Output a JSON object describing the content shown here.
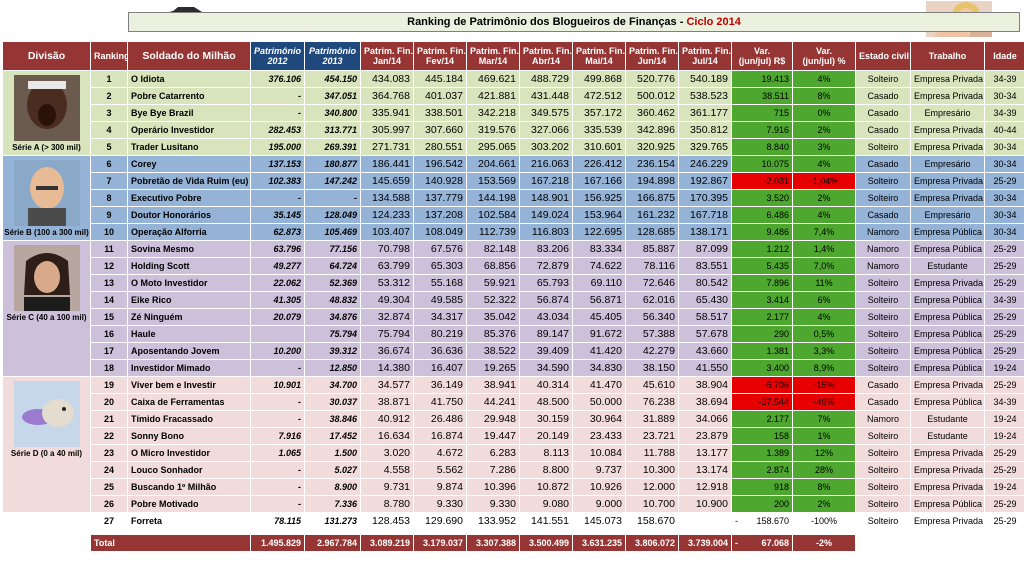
{
  "header": {
    "title": "Ranking de Patrimônio dos Blogueiros de Finanças - ",
    "cycle": "Ciclo 2014"
  },
  "columns": {
    "divisao": "Divisão",
    "ranking": "Ranking",
    "soldado": "Soldado do Milhão",
    "pat2012_a": "Patrimônio",
    "pat2012_b": "2012",
    "pat2013_a": "Patrimônio",
    "pat2013_b": "2013",
    "m1_a": "Patrim. Fin.",
    "m1_b": "Jan/14",
    "m2_a": "Patrim. Fin.",
    "m2_b": "Fev/14",
    "m3_a": "Patrim. Fin.",
    "m3_b": "Mar/14",
    "m4_a": "Patrim. Fin.",
    "m4_b": "Abr/14",
    "m5_a": "Patrim. Fin.",
    "m5_b": "Mai/14",
    "m6_a": "Patrim. Fin.",
    "m6_b": "Jun/14",
    "m7_a": "Patrim. Fin.",
    "m7_b": "Jul/14",
    "varrs_a": "Var.",
    "varrs_b": "(jun/jul) R$",
    "varpct_a": "Var.",
    "varpct_b": "(jun/jul) %",
    "civil": "Estado civil",
    "trabalho": "Trabalho",
    "idade": "Idade"
  },
  "divisions": [
    {
      "label": "Série A (> 300 mil)",
      "icon": "shouting-man-photo"
    },
    {
      "label": "Série B (100 a 300 mil)",
      "icon": "bald-man-photo"
    },
    {
      "label": "Série C (40 a 100 mil)",
      "icon": "long-hair-man-photo"
    },
    {
      "label": "Série D (0 a 40 mil)",
      "icon": "dog-frisbee-photo"
    }
  ],
  "rows": [
    {
      "rank": "1",
      "name": "O Idiota",
      "p12": "376.106",
      "p13": "454.150",
      "m": [
        "434.083",
        "445.184",
        "469.621",
        "488.729",
        "499.868",
        "520.776",
        "540.189"
      ],
      "vr": "19.413",
      "vp": "4%",
      "vc": "green",
      "civil": "Solteiro",
      "work": "Empresa Privada",
      "age": "34-39"
    },
    {
      "rank": "2",
      "name": "Pobre Catarrento",
      "p12": "-",
      "p13": "347.051",
      "m": [
        "364.768",
        "401.037",
        "421.881",
        "431.448",
        "472.512",
        "500.012",
        "538.523"
      ],
      "vr": "38.511",
      "vp": "8%",
      "vc": "green",
      "civil": "Casado",
      "work": "Empresa Privada",
      "age": "30-34"
    },
    {
      "rank": "3",
      "name": "Bye Bye Brazil",
      "p12": "-",
      "p13": "340.800",
      "m": [
        "335.941",
        "338.501",
        "342.218",
        "349.575",
        "357.172",
        "360.462",
        "361.177"
      ],
      "vr": "715",
      "vp": "0%",
      "vc": "green",
      "civil": "Casado",
      "work": "Empresário",
      "age": "34-39"
    },
    {
      "rank": "4",
      "name": "Operário Investidor",
      "p12": "282.453",
      "p13": "313.771",
      "m": [
        "305.997",
        "307.660",
        "319.576",
        "327.066",
        "335.539",
        "342.896",
        "350.812"
      ],
      "vr": "7.916",
      "vp": "2%",
      "vc": "green",
      "civil": "Casado",
      "work": "Empresa Privada",
      "age": "40-44"
    },
    {
      "rank": "5",
      "name": "Trader Lusitano",
      "p12": "195.000",
      "p13": "269.391",
      "m": [
        "271.731",
        "280.551",
        "295.065",
        "303.202",
        "310.601",
        "320.925",
        "329.765"
      ],
      "vr": "8.840",
      "vp": "3%",
      "vc": "green",
      "civil": "Solteiro",
      "work": "Empresa Privada",
      "age": "30-34"
    },
    {
      "rank": "6",
      "name": "Corey",
      "p12": "137.153",
      "p13": "180.877",
      "m": [
        "186.441",
        "196.542",
        "204.661",
        "216.063",
        "226.412",
        "236.154",
        "246.229"
      ],
      "vr": "10.075",
      "vp": "4%",
      "vc": "green",
      "civil": "Casado",
      "work": "Empresário",
      "age": "30-34"
    },
    {
      "rank": "7",
      "name": "Pobretão de Vida Ruim (eu)",
      "p12": "102.383",
      "p13": "147.242",
      "m": [
        "145.659",
        "140.928",
        "153.569",
        "167.218",
        "167.166",
        "194.898",
        "192.867"
      ],
      "vr": "-2.031",
      "vp": "-1,04%",
      "vc": "red",
      "civil": "Solteiro",
      "work": "Empresa Privada",
      "age": "25-29"
    },
    {
      "rank": "8",
      "name": "Executivo Pobre",
      "p12": "-",
      "p13": "-",
      "m": [
        "134.588",
        "137.779",
        "144.198",
        "148.901",
        "156.925",
        "166.875",
        "170.395"
      ],
      "vr": "3.520",
      "vp": "2%",
      "vc": "green",
      "civil": "Solteiro",
      "work": "Empresa Privada",
      "age": "30-34"
    },
    {
      "rank": "9",
      "name": "Doutor Honorários",
      "p12": "35.145",
      "p13": "128.049",
      "m": [
        "124.233",
        "137.208",
        "102.584",
        "149.024",
        "153.964",
        "161.232",
        "167.718"
      ],
      "vr": "6.486",
      "vp": "4%",
      "vc": "green",
      "civil": "Casado",
      "work": "Empresário",
      "age": "30-34"
    },
    {
      "rank": "10",
      "name": "Operação Alforria",
      "p12": "62.873",
      "p13": "105.469",
      "m": [
        "103.407",
        "108.049",
        "112.739",
        "116.803",
        "122.695",
        "128.685",
        "138.171"
      ],
      "vr": "9.486",
      "vp": "7,4%",
      "vc": "green",
      "civil": "Namoro",
      "work": "Empresa Pública",
      "age": "30-34"
    },
    {
      "rank": "11",
      "name": "Sovina Mesmo",
      "p12": "63.796",
      "p13": "77.156",
      "m": [
        "70.798",
        "67.576",
        "82.148",
        "83.206",
        "83.334",
        "85.887",
        "87.099"
      ],
      "vr": "1.212",
      "vp": "1,4%",
      "vc": "green",
      "civil": "Namoro",
      "work": "Empresa Pública",
      "age": "25-29"
    },
    {
      "rank": "12",
      "name": "Holding Scott",
      "p12": "49.277",
      "p13": "64.724",
      "m": [
        "63.799",
        "65.303",
        "68.856",
        "72.879",
        "74.622",
        "78.116",
        "83.551"
      ],
      "vr": "5.435",
      "vp": "7,0%",
      "vc": "green",
      "civil": "Namoro",
      "work": "Estudante",
      "age": "25-29"
    },
    {
      "rank": "13",
      "name": "O Moto Investidor",
      "p12": "22.062",
      "p13": "52.369",
      "m": [
        "53.312",
        "55.168",
        "59.921",
        "65.793",
        "69.110",
        "72.646",
        "80.542"
      ],
      "vr": "7.896",
      "vp": "11%",
      "vc": "green",
      "civil": "Solteiro",
      "work": "Empresa Privada",
      "age": "25-29"
    },
    {
      "rank": "14",
      "name": "Eike Rico",
      "p12": "41.305",
      "p13": "48.832",
      "m": [
        "49.304",
        "49.585",
        "52.322",
        "56.874",
        "56.871",
        "62.016",
        "65.430"
      ],
      "vr": "3.414",
      "vp": "6%",
      "vc": "green",
      "civil": "Solteiro",
      "work": "Empresa Pública",
      "age": "34-39"
    },
    {
      "rank": "15",
      "name": "Zé Ninguém",
      "p12": "20.079",
      "p13": "34.876",
      "m": [
        "32.874",
        "34.317",
        "35.042",
        "43.034",
        "45.405",
        "56.340",
        "58.517"
      ],
      "vr": "2.177",
      "vp": "4%",
      "vc": "green",
      "civil": "Solteiro",
      "work": "Empresa Pública",
      "age": "25-29"
    },
    {
      "rank": "16",
      "name": "Haule",
      "p12": "",
      "p13": "75.794",
      "m": [
        "75.794",
        "80.219",
        "85.376",
        "89.147",
        "91.672",
        "57.388",
        "57.678"
      ],
      "vr": "290",
      "vp": "0,5%",
      "vc": "green",
      "civil": "Solteiro",
      "work": "Empresa Pública",
      "age": "25-29"
    },
    {
      "rank": "17",
      "name": "Aposentando Jovem",
      "p12": "10.200",
      "p13": "39.312",
      "m": [
        "36.674",
        "36.636",
        "38.522",
        "39.409",
        "41.420",
        "42.279",
        "43.660"
      ],
      "vr": "1.381",
      "vp": "3,3%",
      "vc": "green",
      "civil": "Solteiro",
      "work": "Empresa Pública",
      "age": "25-29"
    },
    {
      "rank": "18",
      "name": "Investidor Mimado",
      "p12": "-",
      "p13": "12.850",
      "m": [
        "14.380",
        "16.407",
        "19.265",
        "34.590",
        "34.830",
        "38.150",
        "41.550"
      ],
      "vr": "3.400",
      "vp": "8,9%",
      "vc": "green",
      "civil": "Solteiro",
      "work": "Empresa Pública",
      "age": "19-24"
    },
    {
      "rank": "19",
      "name": "Viver bem e Investir",
      "p12": "10.901",
      "p13": "34.700",
      "m": [
        "34.577",
        "36.149",
        "38.941",
        "40.314",
        "41.470",
        "45.610",
        "38.904"
      ],
      "vr": "-6.706",
      "vp": "-15%",
      "vc": "red",
      "civil": "Casado",
      "work": "Empresa Privada",
      "age": "25-29"
    },
    {
      "rank": "20",
      "name": "Caixa de Ferramentas",
      "p12": "-",
      "p13": "30.037",
      "m": [
        "38.871",
        "41.750",
        "44.241",
        "48.500",
        "50.000",
        "76.238",
        "38.694"
      ],
      "vr": "-37.544",
      "vp": "-49%",
      "vc": "red",
      "civil": "Casado",
      "work": "Empresa Pública",
      "age": "34-39"
    },
    {
      "rank": "21",
      "name": "Tímido Fracassado",
      "p12": "-",
      "p13": "38.846",
      "m": [
        "40.912",
        "26.486",
        "29.948",
        "30.159",
        "30.964",
        "31.889",
        "34.066"
      ],
      "vr": "2.177",
      "vp": "7%",
      "vc": "green",
      "civil": "Namoro",
      "work": "Estudante",
      "age": "19-24"
    },
    {
      "rank": "22",
      "name": "Sonny Bono",
      "p12": "7.916",
      "p13": "17.452",
      "m": [
        "16.634",
        "16.874",
        "19.447",
        "20.149",
        "23.433",
        "23.721",
        "23.879"
      ],
      "vr": "158",
      "vp": "1%",
      "vc": "green",
      "civil": "Solteiro",
      "work": "Estudante",
      "age": "19-24"
    },
    {
      "rank": "23",
      "name": "O Micro Investidor",
      "p12": "1.065",
      "p13": "1.500",
      "m": [
        "3.020",
        "4.672",
        "6.283",
        "8.113",
        "10.084",
        "11.788",
        "13.177"
      ],
      "vr": "1.389",
      "vp": "12%",
      "vc": "green",
      "civil": "Solteiro",
      "work": "Empresa Privada",
      "age": "25-29"
    },
    {
      "rank": "24",
      "name": "Louco Sonhador",
      "p12": "-",
      "p13": "5.027",
      "m": [
        "4.558",
        "5.562",
        "7.286",
        "8.800",
        "9.737",
        "10.300",
        "13.174"
      ],
      "vr": "2.874",
      "vp": "28%",
      "vc": "green",
      "civil": "Solteiro",
      "work": "Empresa Privada",
      "age": "25-29"
    },
    {
      "rank": "25",
      "name": "Buscando 1º Milhão",
      "p12": "-",
      "p13": "8.900",
      "m": [
        "9.731",
        "9.874",
        "10.396",
        "10.872",
        "10.926",
        "12.000",
        "12.918"
      ],
      "vr": "918",
      "vp": "8%",
      "vc": "green",
      "civil": "Solteiro",
      "work": "Empresa Privada",
      "age": "19-24"
    },
    {
      "rank": "26",
      "name": "Pobre Motivado",
      "p12": "-",
      "p13": "7.336",
      "m": [
        "8.780",
        "9.330",
        "9.330",
        "9.080",
        "9.000",
        "10.700",
        "10.900"
      ],
      "vr": "200",
      "vp": "2%",
      "vc": "green",
      "civil": "Solteiro",
      "work": "Empresa Pública",
      "age": "25-29"
    },
    {
      "rank": "27",
      "name": "Forreta",
      "p12": "78.115",
      "p13": "131.273",
      "m": [
        "128.453",
        "129.690",
        "133.952",
        "141.551",
        "145.073",
        "158.670",
        ""
      ],
      "vr": "158.670",
      "vp": "-100%",
      "vc": "none",
      "vrprefix": "-",
      "civil": "Solteiro",
      "work": "Empresa Privada",
      "age": "25-29"
    }
  ],
  "total": {
    "label": "Total",
    "p12": "1.495.829",
    "p13": "2.967.784",
    "m": [
      "3.089.219",
      "3.179.037",
      "3.307.388",
      "3.500.499",
      "3.631.235",
      "3.806.072",
      "3.739.004"
    ],
    "vr": "67.068",
    "vrprefix": "-",
    "vp": "-2%"
  },
  "colors": {
    "header": "#963634",
    "patrimonio_header": "#1f497d",
    "serie_a": "#d8e4bc",
    "serie_b": "#95b3d7",
    "serie_c": "#ccc0da",
    "serie_d": "#f2dcdb",
    "positive": "#4ea72e",
    "negative": "#e60000",
    "cycle": "#c00000"
  }
}
